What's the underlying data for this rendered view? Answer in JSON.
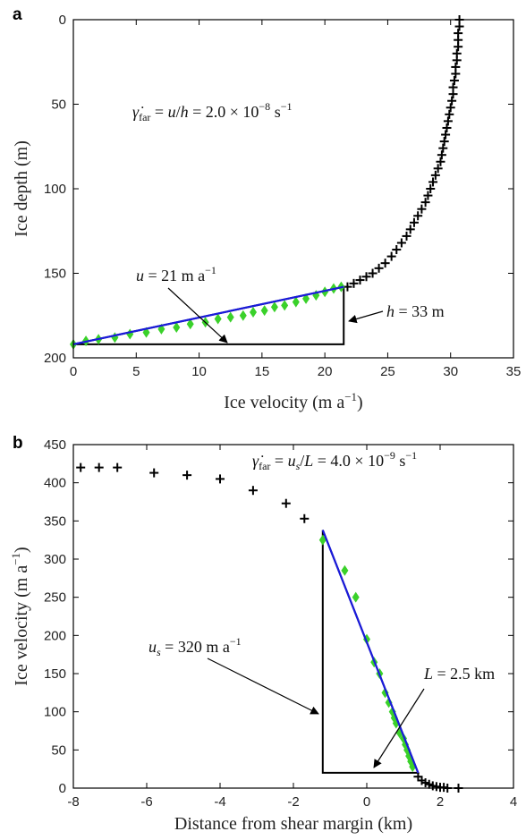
{
  "colors": {
    "fit_line": "#1a1adb",
    "green_points": "#3ad12a",
    "black_points": "#000000",
    "triangle": "#000000"
  },
  "chart_data": [
    {
      "panel": "a",
      "type": "scatter",
      "xlabel": "Ice velocity (m a⁻¹)",
      "ylabel": "Ice depth (m)",
      "xlim": [
        0,
        35
      ],
      "ylim": [
        200,
        0
      ],
      "y_inverted": true,
      "xticks": [
        "0",
        "5",
        "10",
        "15",
        "20",
        "25",
        "30",
        "35"
      ],
      "yticks": [
        "0",
        "50",
        "100",
        "150",
        "200"
      ],
      "annotations": {
        "rate": "γ̇far = u/h = 2.0 × 10⁻⁸ s⁻¹",
        "u_label": "u = 21 m a⁻¹",
        "h_label": "h = 33 m"
      },
      "series": [
        {
          "marker": "plus",
          "color": "#000000",
          "x": [
            30.7,
            30.7,
            30.6,
            30.6,
            30.6,
            30.5,
            30.5,
            30.4,
            30.4,
            30.3,
            30.2,
            30.2,
            30.1,
            30.0,
            29.9,
            29.8,
            29.7,
            29.6,
            29.5,
            29.4,
            29.3,
            29.2,
            29.0,
            28.8,
            28.6,
            28.4,
            28.2,
            28.0,
            27.7,
            27.4,
            27.1,
            26.8,
            26.5,
            26.1,
            25.7,
            25.3,
            24.8,
            24.3,
            23.8,
            23.3,
            22.8,
            22.3,
            21.8
          ],
          "y": [
            0,
            4,
            8,
            12,
            16,
            20,
            24,
            28,
            32,
            36,
            40,
            44,
            48,
            52,
            56,
            60,
            64,
            68,
            72,
            76,
            80,
            84,
            88,
            92,
            96,
            100,
            104,
            108,
            112,
            116,
            120,
            124,
            128,
            132,
            136,
            140,
            144,
            147,
            150,
            152,
            154,
            156,
            158
          ]
        },
        {
          "marker": "diamond",
          "color": "#3ad12a",
          "x": [
            0,
            1,
            2,
            3.3,
            4.5,
            5.8,
            7,
            8.2,
            9.3,
            10.5,
            11.5,
            12.5,
            13.5,
            14.3,
            15.2,
            16,
            16.8,
            17.7,
            18.5,
            19.3,
            20,
            20.7,
            21.3
          ],
          "y": [
            192,
            190,
            189,
            188,
            186,
            185,
            183,
            182,
            180,
            179,
            177,
            176,
            175,
            173,
            172,
            170,
            169,
            167,
            165,
            163,
            161,
            159,
            158
          ]
        }
      ],
      "fit_line": {
        "x": [
          0,
          21.5
        ],
        "y": [
          192,
          158
        ]
      },
      "triangle": {
        "x": [
          0,
          21.5,
          21.5
        ],
        "y": [
          192,
          158,
          192
        ]
      }
    },
    {
      "panel": "b",
      "type": "scatter",
      "xlabel": "Distance from shear margin (km)",
      "ylabel": "Ice velocity (m a⁻¹)",
      "xlim": [
        -8,
        4
      ],
      "ylim": [
        0,
        450
      ],
      "xticks": [
        "-8",
        "-6",
        "-4",
        "-2",
        "0",
        "2",
        "4"
      ],
      "yticks": [
        "0",
        "50",
        "100",
        "150",
        "200",
        "250",
        "300",
        "350",
        "400",
        "450"
      ],
      "annotations": {
        "rate": "γ̇far = us/L = 4.0 × 10⁻⁹ s⁻¹",
        "us_label": "us = 320 m a⁻¹",
        "L_label": "L = 2.5 km"
      },
      "series": [
        {
          "marker": "plus",
          "color": "#000000",
          "x": [
            -7.8,
            -7.3,
            -6.8,
            -5.8,
            -4.9,
            -4.0,
            -3.1,
            -2.2,
            -1.7,
            1.4,
            1.5,
            1.6,
            1.7,
            1.8,
            1.9,
            2.0,
            2.1,
            2.2,
            2.5
          ],
          "y": [
            420,
            420,
            420,
            413,
            410,
            405,
            390,
            373,
            353,
            15,
            10,
            7,
            5,
            3,
            2,
            1,
            1,
            0,
            0
          ]
        },
        {
          "marker": "diamond",
          "color": "#3ad12a",
          "x": [
            -1.2,
            -0.6,
            -0.3,
            0,
            0.2,
            0.35,
            0.5,
            0.6,
            0.7,
            0.75,
            0.8,
            0.9,
            1.0,
            1.05,
            1.1,
            1.15,
            1.2,
            1.25
          ],
          "y": [
            325,
            285,
            250,
            195,
            165,
            150,
            125,
            112,
            100,
            92,
            85,
            72,
            65,
            57,
            50,
            42,
            35,
            28
          ]
        }
      ],
      "fit_line": {
        "x": [
          -1.2,
          1.4
        ],
        "y": [
          338,
          20
        ]
      },
      "triangle": {
        "x": [
          -1.2,
          -1.2,
          1.4
        ],
        "y": [
          338,
          20,
          20
        ]
      }
    }
  ]
}
